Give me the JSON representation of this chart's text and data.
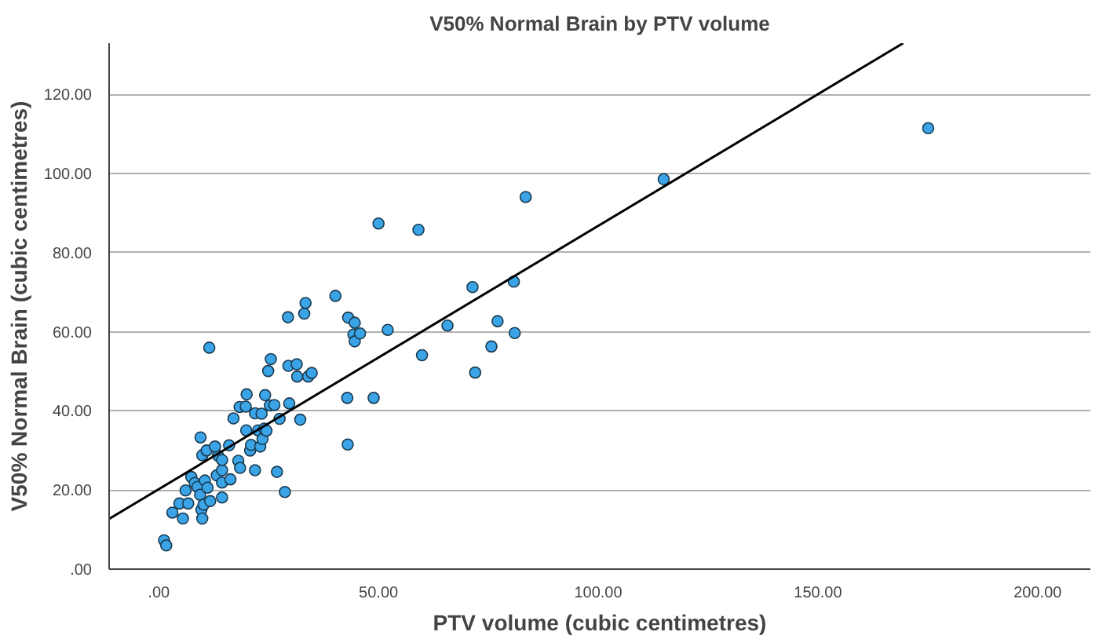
{
  "chart_data": {
    "type": "scatter",
    "title": "V50% Normal Brain by PTV volume",
    "xlabel": "PTV volume (cubic centimetres)",
    "ylabel": "V50% Normal Brain (cubic centimetres)",
    "xlim": [
      -11.3,
      212
    ],
    "ylim": [
      0,
      133
    ],
    "xticks": [
      {
        "value": 0,
        "label": ".00"
      },
      {
        "value": 50,
        "label": "50.00"
      },
      {
        "value": 100,
        "label": "100.00"
      },
      {
        "value": 150,
        "label": "150.00"
      },
      {
        "value": 200,
        "label": "200.00"
      }
    ],
    "yticks": [
      {
        "value": 0,
        "label": ".00"
      },
      {
        "value": 20,
        "label": "20.00"
      },
      {
        "value": 40,
        "label": "40.00"
      },
      {
        "value": 60,
        "label": "60.00"
      },
      {
        "value": 80,
        "label": "80.00"
      },
      {
        "value": 100,
        "label": "100.00"
      },
      {
        "value": 120,
        "label": "120.00"
      }
    ],
    "grid": "y",
    "marker": "circle",
    "series": [
      {
        "color": "#3aa4e6",
        "x": [
          1.2,
          1.7,
          5.5,
          3.1,
          4.7,
          6.7,
          6.1,
          7.4,
          8.2,
          8.8,
          9.4,
          9.7,
          9.9,
          10.2,
          10.5,
          11.1,
          11.7,
          13.2,
          14.4,
          14.4,
          14.4,
          16.3,
          13.5,
          14.4,
          9.9,
          10.9,
          9.5,
          12.8,
          16.0,
          11.5,
          18.1,
          18.5,
          17.0,
          18.4,
          19.8,
          20.0,
          19.9,
          20.8,
          21.0,
          21.9,
          21.9,
          22.6,
          23.4,
          23.1,
          24.0,
          23.6,
          24.5,
          24.2,
          24.9,
          25.5,
          25.3,
          26.3,
          26.9,
          27.5,
          28.7,
          29.7,
          29.5,
          31.4,
          31.5,
          32.2,
          34.0,
          34.8,
          29.4,
          33.1,
          33.4,
          40.2,
          42.9,
          43.0,
          43.1,
          44.6,
          44.3,
          44.6,
          45.8,
          48.9,
          52.1,
          59.9,
          65.7,
          50.0,
          59.1,
          83.5,
          114.9,
          71.4,
          80.8,
          77.1,
          81.0,
          75.7,
          72.0,
          175.1
        ],
        "values": [
          7.3,
          6.0,
          12.8,
          14.3,
          16.6,
          16.6,
          19.9,
          23.3,
          21.8,
          20.8,
          18.8,
          15.0,
          12.8,
          16.3,
          22.4,
          20.6,
          17.2,
          23.7,
          18.1,
          21.9,
          25.0,
          22.7,
          28.7,
          27.6,
          28.8,
          30.0,
          33.3,
          31.0,
          31.3,
          56.0,
          27.4,
          25.6,
          38.1,
          41.0,
          41.1,
          44.2,
          35.1,
          30.0,
          31.4,
          39.4,
          25.0,
          35.1,
          39.3,
          31.0,
          35.5,
          32.9,
          35.0,
          44.0,
          50.1,
          53.1,
          41.4,
          41.5,
          24.6,
          38.0,
          19.5,
          41.9,
          51.4,
          51.8,
          48.7,
          37.8,
          48.7,
          49.6,
          63.7,
          64.6,
          67.3,
          69.1,
          43.3,
          31.5,
          63.6,
          62.3,
          59.3,
          57.6,
          59.6,
          43.3,
          60.5,
          54.1,
          61.6,
          87.4,
          85.8,
          94.1,
          98.6,
          71.3,
          72.7,
          62.7,
          59.7,
          56.3,
          49.7,
          111.5
        ]
      },
      {
        "type": "line",
        "color": "#000000",
        "line_style": "solid",
        "marker": "none",
        "x": [
          -11.3,
          169.4
        ],
        "values": [
          12.7,
          133
        ]
      }
    ]
  }
}
